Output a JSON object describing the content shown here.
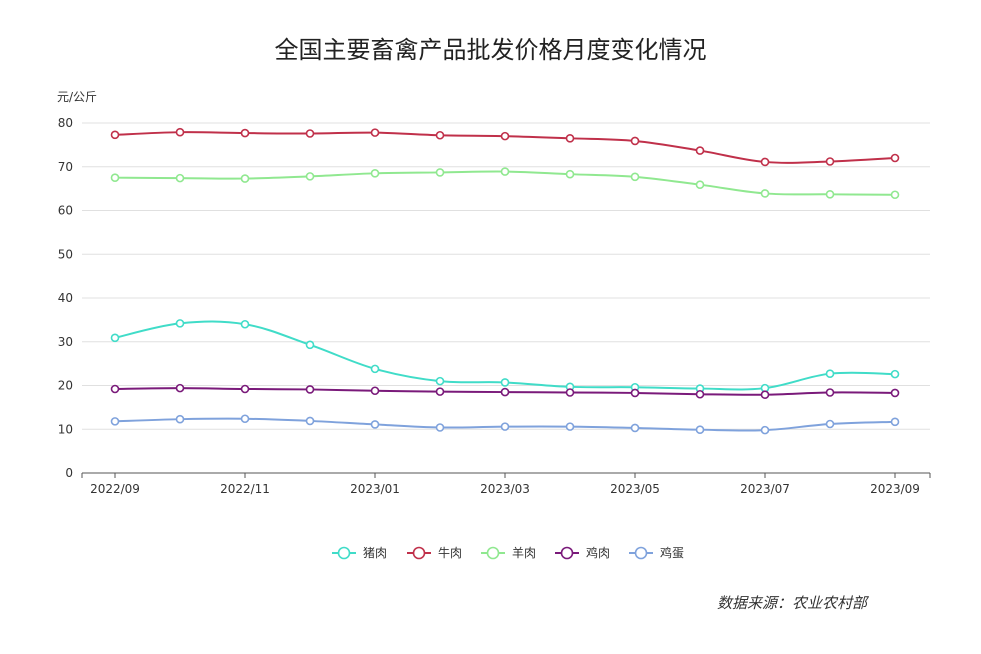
{
  "chart_data": {
    "type": "line",
    "title": "全国主要畜禽产品批发价格月度变化情况",
    "ylabel": "元/公斤",
    "xlabel": "",
    "ylim": [
      0,
      80
    ],
    "y_ticks": [
      0,
      10,
      20,
      30,
      40,
      50,
      60,
      70,
      80
    ],
    "grid": true,
    "smooth": true,
    "legend_position": "bottom-center",
    "categories": [
      "2022/09",
      "2022/10",
      "2022/11",
      "2022/12",
      "2023/01",
      "2023/02",
      "2023/03",
      "2023/04",
      "2023/05",
      "2023/06",
      "2023/07",
      "2023/08",
      "2023/09"
    ],
    "x_tick_labels": [
      "2022/09",
      "2022/11",
      "2023/01",
      "2023/03",
      "2023/05",
      "2023/07",
      "2023/09"
    ],
    "series": [
      {
        "name": "猪肉",
        "color": "#40dcc8",
        "values": [
          30.9,
          34.2,
          34.0,
          29.3,
          23.8,
          21.0,
          20.7,
          19.7,
          19.6,
          19.3,
          19.4,
          22.7,
          22.6
        ]
      },
      {
        "name": "牛肉",
        "color": "#c0304a",
        "values": [
          77.3,
          77.9,
          77.7,
          77.6,
          77.8,
          77.2,
          77.0,
          76.5,
          75.9,
          73.7,
          71.1,
          71.2,
          72.0
        ]
      },
      {
        "name": "羊肉",
        "color": "#90e890",
        "values": [
          67.5,
          67.4,
          67.3,
          67.8,
          68.5,
          68.7,
          68.9,
          68.3,
          67.7,
          65.9,
          63.9,
          63.7,
          63.6
        ]
      },
      {
        "name": "鸡肉",
        "color": "#7a1a7a",
        "values": [
          19.2,
          19.4,
          19.2,
          19.1,
          18.8,
          18.6,
          18.5,
          18.4,
          18.3,
          18.0,
          17.9,
          18.4,
          18.3
        ]
      },
      {
        "name": "鸡蛋",
        "color": "#7fa2dc",
        "values": [
          11.8,
          12.3,
          12.4,
          11.9,
          11.1,
          10.4,
          10.6,
          10.6,
          10.3,
          9.9,
          9.8,
          11.2,
          11.7
        ]
      }
    ]
  },
  "source": "数据来源：农业农村部"
}
